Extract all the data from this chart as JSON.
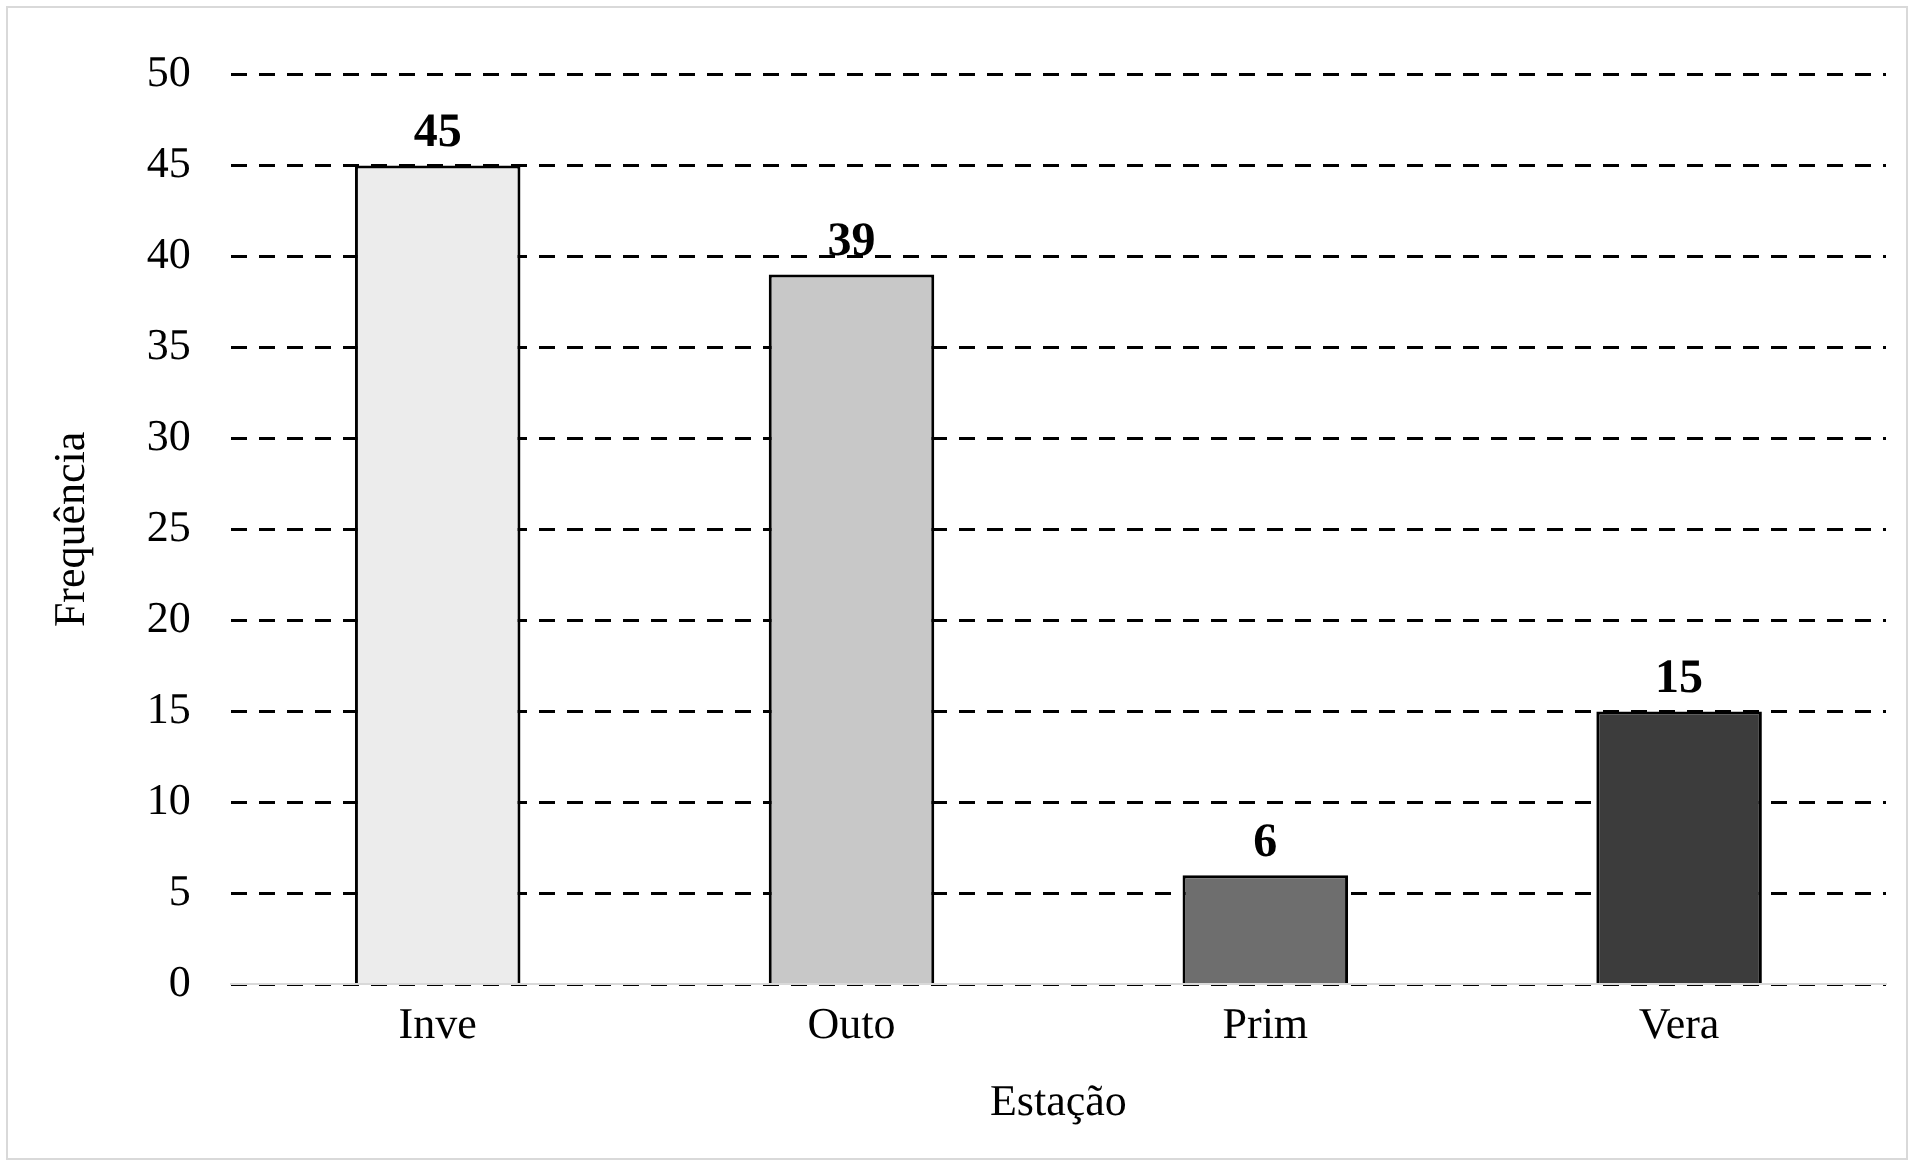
{
  "chart_data": {
    "type": "bar",
    "xlabel": "Estação",
    "ylabel": "Frequência",
    "categories": [
      "Inve",
      "Outo",
      "Prim",
      "Vera"
    ],
    "values": [
      45,
      39,
      6,
      15
    ],
    "colors": [
      "#ececec",
      "#c8c8c8",
      "#6e6e6e",
      "#3c3c3c"
    ],
    "ylim": [
      0,
      50
    ],
    "yticks": [
      0,
      5,
      10,
      15,
      20,
      25,
      30,
      35,
      40,
      45,
      50
    ],
    "grid": "y",
    "data_labels": true,
    "legend": false
  }
}
